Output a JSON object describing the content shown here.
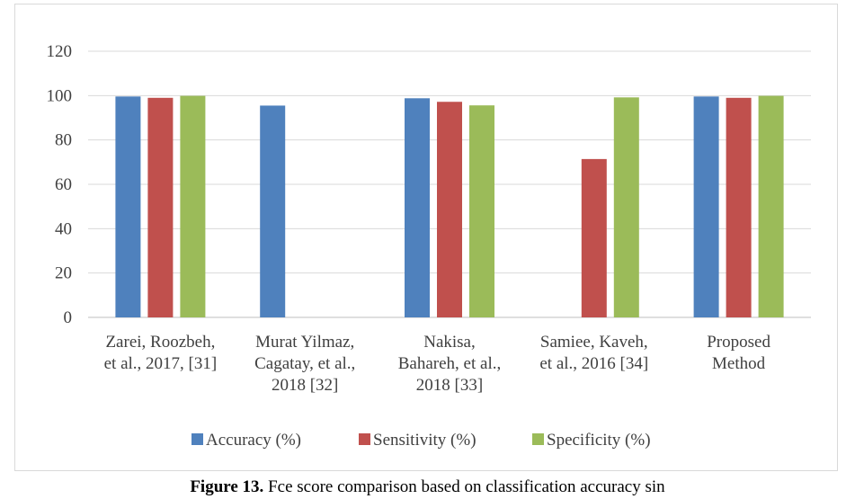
{
  "chart_data": {
    "type": "bar",
    "categories": [
      [
        "Zarei, Roozbeh,",
        "et al., 2017, [31]"
      ],
      [
        "Murat Yilmaz,",
        "Cagatay, et al.,",
        "2018 [32]"
      ],
      [
        "Nakisa,",
        "Bahareh, et al.,",
        "2018 [33]"
      ],
      [
        "Samiee, Kaveh,",
        "et al., 2016 [34]"
      ],
      [
        "Proposed",
        "Method"
      ]
    ],
    "series": [
      {
        "name": "Accuracy (%)",
        "color": "#4f81bd",
        "values": [
          99.6,
          95.5,
          98.8,
          null,
          99.6
        ]
      },
      {
        "name": "Sensitivity (%)",
        "color": "#c0504d",
        "values": [
          99.0,
          null,
          97.2,
          71.4,
          99.0
        ]
      },
      {
        "name": "Specificity (%)",
        "color": "#9bbb59",
        "values": [
          99.9,
          null,
          95.6,
          99.2,
          99.9
        ]
      }
    ],
    "ylim": [
      0,
      120
    ],
    "yticks": [
      0,
      20,
      40,
      60,
      80,
      100,
      120
    ],
    "grid": true,
    "legend_position": "bottom"
  },
  "caption": {
    "label": "Figure 13.",
    "text": "Fce score comparison based on classification accuracy sin"
  }
}
